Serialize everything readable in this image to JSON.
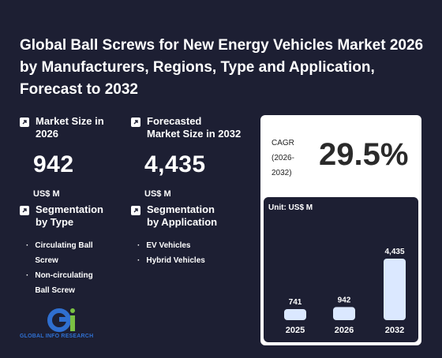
{
  "title": "Global Ball Screws for New Energy Vehicles Market 2026 by Manufacturers, Regions, Type and Application, Forecast to 2032",
  "market_size": {
    "label": "Market Size in\n2026",
    "value": "942",
    "unit": "US$ M"
  },
  "forecast": {
    "label": "Forecasted\nMarket Size in 2032",
    "value": "4,435",
    "unit": "US$ M"
  },
  "segmentation_type": {
    "label": "Segmentation\nby Type",
    "items": [
      "Circulating Ball Screw",
      "Non-circulating Ball Screw"
    ]
  },
  "segmentation_application": {
    "label": "Segmentation\nby Application",
    "items": [
      "EV Vehicles",
      "Hybrid Vehicles"
    ]
  },
  "cagr": {
    "label": "CAGR\n(2026-\n2032)",
    "value": "29.5%"
  },
  "logo": {
    "text": "GLOBAL INFO RESEARCH"
  },
  "chart_data": {
    "type": "bar",
    "unit_label": "Unit: US$ M",
    "categories": [
      "2025",
      "2026",
      "2032"
    ],
    "values": [
      741,
      942,
      4435
    ],
    "value_labels": [
      "741",
      "942",
      "4,435"
    ],
    "bar_color": "#dbe8ff"
  }
}
